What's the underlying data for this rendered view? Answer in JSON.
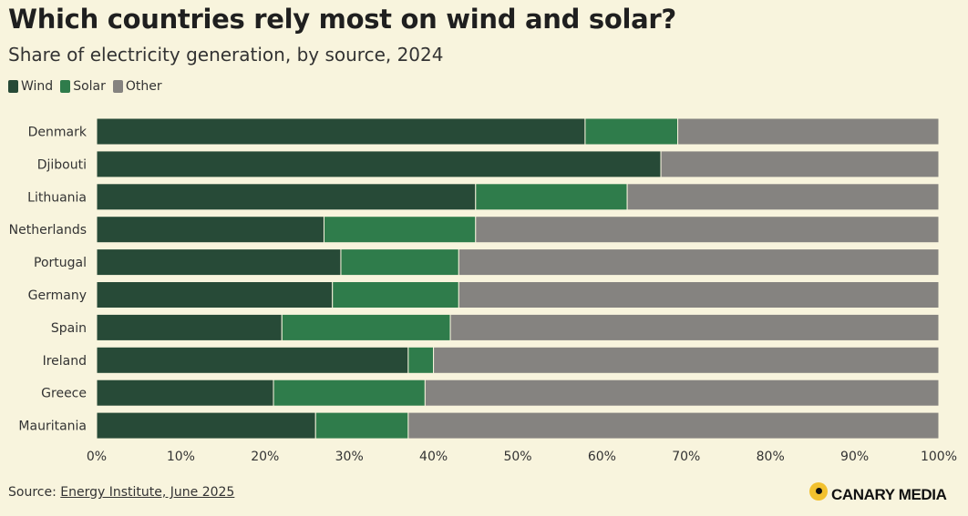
{
  "header": {
    "title": "Which countries rely most on wind and solar?",
    "subtitle": "Share of electricity generation, by source, 2024"
  },
  "legend": [
    {
      "label": "Wind",
      "color": "#274a37"
    },
    {
      "label": "Solar",
      "color": "#2f7c4b"
    },
    {
      "label": "Other",
      "color": "#858380"
    }
  ],
  "chart_data": {
    "type": "bar",
    "orientation": "horizontal",
    "stacked": true,
    "categories": [
      "Denmark",
      "Djibouti",
      "Lithuania",
      "Netherlands",
      "Portugal",
      "Germany",
      "Spain",
      "Ireland",
      "Greece",
      "Mauritania"
    ],
    "series": [
      {
        "name": "Wind",
        "color": "#274a37",
        "values": [
          58,
          67,
          45,
          27,
          29,
          28,
          22,
          37,
          21,
          26
        ]
      },
      {
        "name": "Solar",
        "color": "#2f7c4b",
        "values": [
          11,
          0,
          18,
          18,
          14,
          15,
          20,
          3,
          18,
          11
        ]
      },
      {
        "name": "Other",
        "color": "#858380",
        "values": [
          31,
          33,
          37,
          55,
          57,
          57,
          58,
          60,
          61,
          63
        ]
      }
    ],
    "xlim": [
      0,
      100
    ],
    "xticks": [
      "0%",
      "10%",
      "20%",
      "30%",
      "40%",
      "50%",
      "60%",
      "70%",
      "80%",
      "90%",
      "100%"
    ],
    "grid": false,
    "legend_position": "top-left"
  },
  "footer": {
    "source_prefix": "Source: ",
    "source_link": "Energy Institute, June 2025",
    "brand": "CANARY MEDIA"
  }
}
